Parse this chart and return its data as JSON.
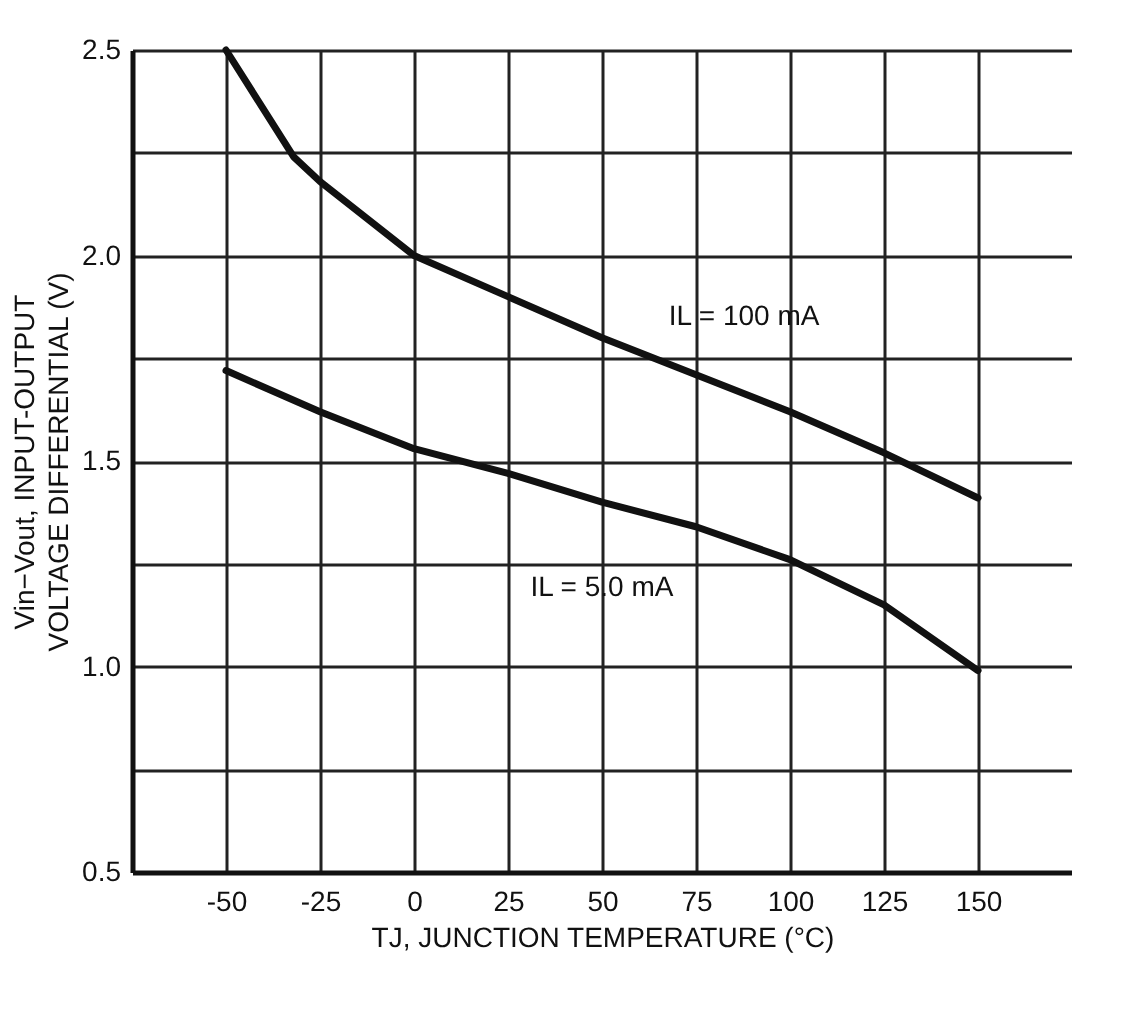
{
  "chart_data": {
    "type": "line",
    "xlabel": "TJ, JUNCTION TEMPERATURE (°C)",
    "ylabel": "Vin−Vout, INPUT-OUTPUT VOLTAGE DIFFERENTIAL (V)",
    "x": [
      -50,
      -32,
      -25,
      0,
      25,
      50,
      75,
      100,
      125,
      150
    ],
    "series": [
      {
        "color": "#111111",
        "values": [
          2.5,
          2.24,
          2.18,
          2.0,
          1.9,
          1.8,
          1.71,
          1.62,
          1.52,
          1.41
        ]
      },
      {
        "color": "#111111",
        "x": [
          -50,
          -25,
          0,
          25,
          50,
          75,
          100,
          125,
          150
        ],
        "values": [
          1.72,
          1.62,
          1.53,
          1.47,
          1.4,
          1.34,
          1.26,
          1.15,
          0.99
        ]
      }
    ],
    "annotations": [
      {
        "text": "IL = 100 mA",
        "x": 75,
        "y": 1.71
      },
      {
        "text": "IL = 5.0 mA",
        "x": 50,
        "y": 1.4
      }
    ],
    "xlim": [
      -75,
      175
    ],
    "xticks": [
      -50,
      -25,
      0,
      25,
      50,
      75,
      100,
      125,
      150
    ],
    "ylim": [
      0.5,
      2.5
    ],
    "yticks": [
      0.5,
      {
        "value": 0.75,
        "label": null
      },
      {
        "value": 1,
        "label": "1.0"
      },
      {
        "value": 1.25,
        "label": null
      },
      1.5,
      {
        "value": 1.75,
        "label": null
      },
      {
        "value": 2,
        "label": "2.0"
      },
      {
        "value": 2.25,
        "label": null
      },
      2.5
    ],
    "grid": true,
    "marker": "none",
    "line_style": "solid"
  }
}
